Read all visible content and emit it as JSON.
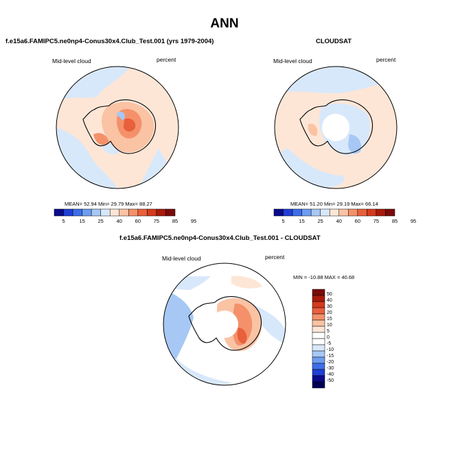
{
  "figure": {
    "title": "ANN"
  },
  "panels": [
    {
      "id": "model",
      "title": "f.e15a6.FAMIPC5.ne0np4-Conus30x4.Club_Test.001 (yrs 1979-2004)",
      "variable": "Mid-level cloud",
      "units": "percent",
      "stats": "MEAN= 52.94  Min= 29.79  Max= 88.27",
      "colorbar": {
        "ticks": [
          "5",
          "15",
          "25",
          "40",
          "60",
          "75",
          "85",
          "95"
        ],
        "colors": [
          "#0a0a8c",
          "#1f3fd4",
          "#3d6ee8",
          "#6e9cf0",
          "#a7c8f5",
          "#d8e8fb",
          "#fde6d6",
          "#fac3a4",
          "#f4916a",
          "#e8603c",
          "#d43a1e",
          "#a81a0a",
          "#7a0a0a"
        ]
      }
    },
    {
      "id": "obs",
      "title": "CLOUDSAT",
      "variable": "Mid-level cloud",
      "units": "percent",
      "stats": "MEAN= 51.20  Min= 29.19  Max= 66.14",
      "colorbar": {
        "ticks": [
          "5",
          "15",
          "25",
          "40",
          "60",
          "75",
          "85",
          "95"
        ],
        "colors": [
          "#0a0a8c",
          "#1f3fd4",
          "#3d6ee8",
          "#6e9cf0",
          "#a7c8f5",
          "#d8e8fb",
          "#fde6d6",
          "#fac3a4",
          "#f4916a",
          "#e8603c",
          "#d43a1e",
          "#a81a0a",
          "#7a0a0a"
        ]
      }
    },
    {
      "id": "diff",
      "title": "f.e15a6.FAMIPC5.ne0np4-Conus30x4.Club_Test.001 - CLOUDSAT",
      "variable": "Mid-level cloud",
      "units": "percent",
      "stats": "MIN = -10.88 MAX =  40.68",
      "colorbar": {
        "ticks": [
          "50",
          "40",
          "30",
          "20",
          "15",
          "10",
          "5",
          "0",
          "-5",
          "-10",
          "-15",
          "-20",
          "-30",
          "-40",
          "-50"
        ],
        "colors": [
          "#7a0a0a",
          "#a81a0a",
          "#d43a1e",
          "#e8603c",
          "#f4916a",
          "#fac3a4",
          "#fde6d6",
          "#ffffff",
          "#ffffff",
          "#d8e8fb",
          "#a7c8f5",
          "#6e9cf0",
          "#3d6ee8",
          "#1f3fd4",
          "#0a0a8c",
          "#000055"
        ]
      }
    }
  ],
  "palette": {
    "land_outline": "#000000",
    "ocean_light_blue": "#d8e8fb",
    "light_peach": "#fde6d6",
    "mid_red": "#f4916a",
    "deep_red": "#d43a1e",
    "mid_blue": "#a7c8f5"
  }
}
